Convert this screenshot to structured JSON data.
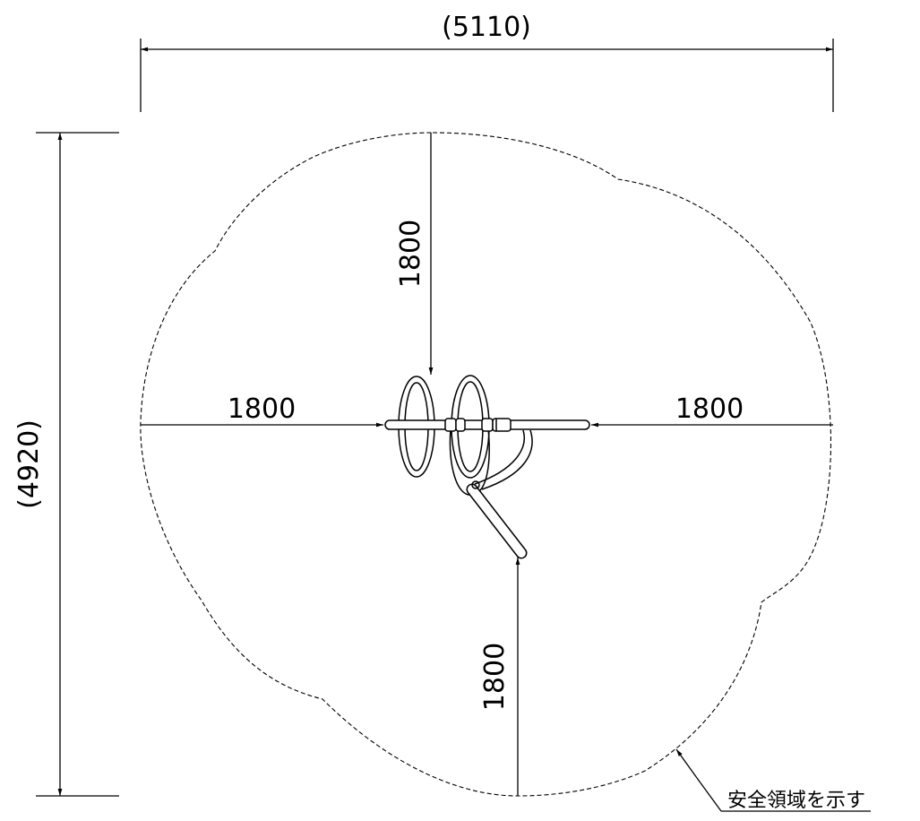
{
  "dimensions": {
    "overall_width": "(5110)",
    "overall_depth": "(4920)",
    "clearance_top": "1800",
    "clearance_left": "1800",
    "clearance_right": "1800",
    "clearance_bottom": "1800"
  },
  "note": {
    "safety_zone_label": "安全領域を示す"
  }
}
